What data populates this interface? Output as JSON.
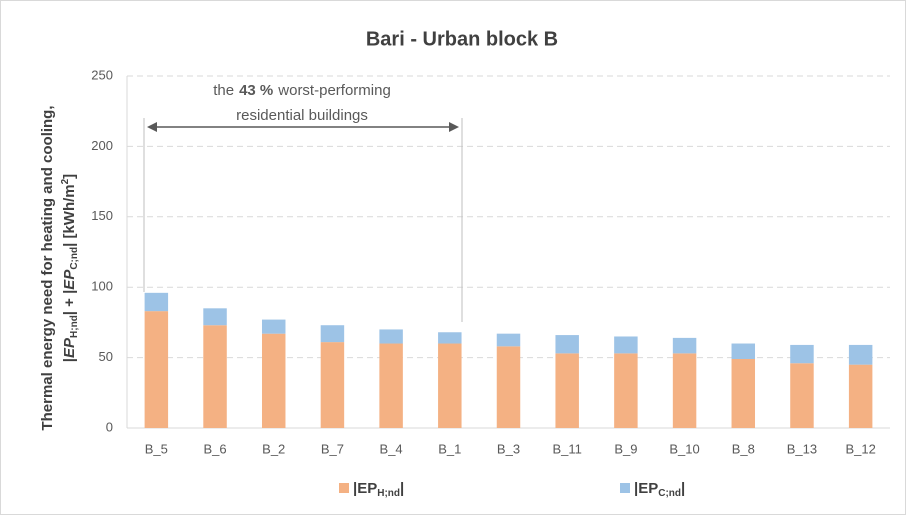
{
  "chart_data": {
    "type": "stacked_bar",
    "title": "Bari - Urban block B",
    "ylabel_line1": "Thermal energy need for heating and cooling,",
    "ylabel_line2": [
      "|",
      "EP",
      "H;nd",
      "| + |",
      "EP",
      "C;nd",
      "| [kWh/m",
      "2",
      "]"
    ],
    "annotation": {
      "line1": [
        "the",
        "43 %",
        "worst-performing"
      ],
      "line2": "residential buildings"
    },
    "categories": [
      "B_5",
      "B_6",
      "B_2",
      "B_7",
      "B_4",
      "B_1",
      "B_3",
      "B_11",
      "B_9",
      "B_10",
      "B_8",
      "B_13",
      "B_12"
    ],
    "series": [
      {
        "name": "|EPH;nd|",
        "name_sub": "H;nd",
        "color": "#f4b183",
        "values": [
          83,
          73,
          67,
          61,
          60,
          60,
          58,
          53,
          53,
          53,
          49,
          46,
          45
        ]
      },
      {
        "name": "|EPC;nd|",
        "name_sub": "C;nd",
        "color": "#9dc3e6",
        "values": [
          13,
          12,
          10,
          12,
          10,
          8,
          9,
          13,
          12,
          11,
          11,
          13,
          14
        ]
      }
    ],
    "ylim": [
      0,
      250
    ],
    "yticks": [
      0,
      50,
      100,
      150,
      200,
      250
    ],
    "grid": true,
    "legend": "bottom"
  }
}
